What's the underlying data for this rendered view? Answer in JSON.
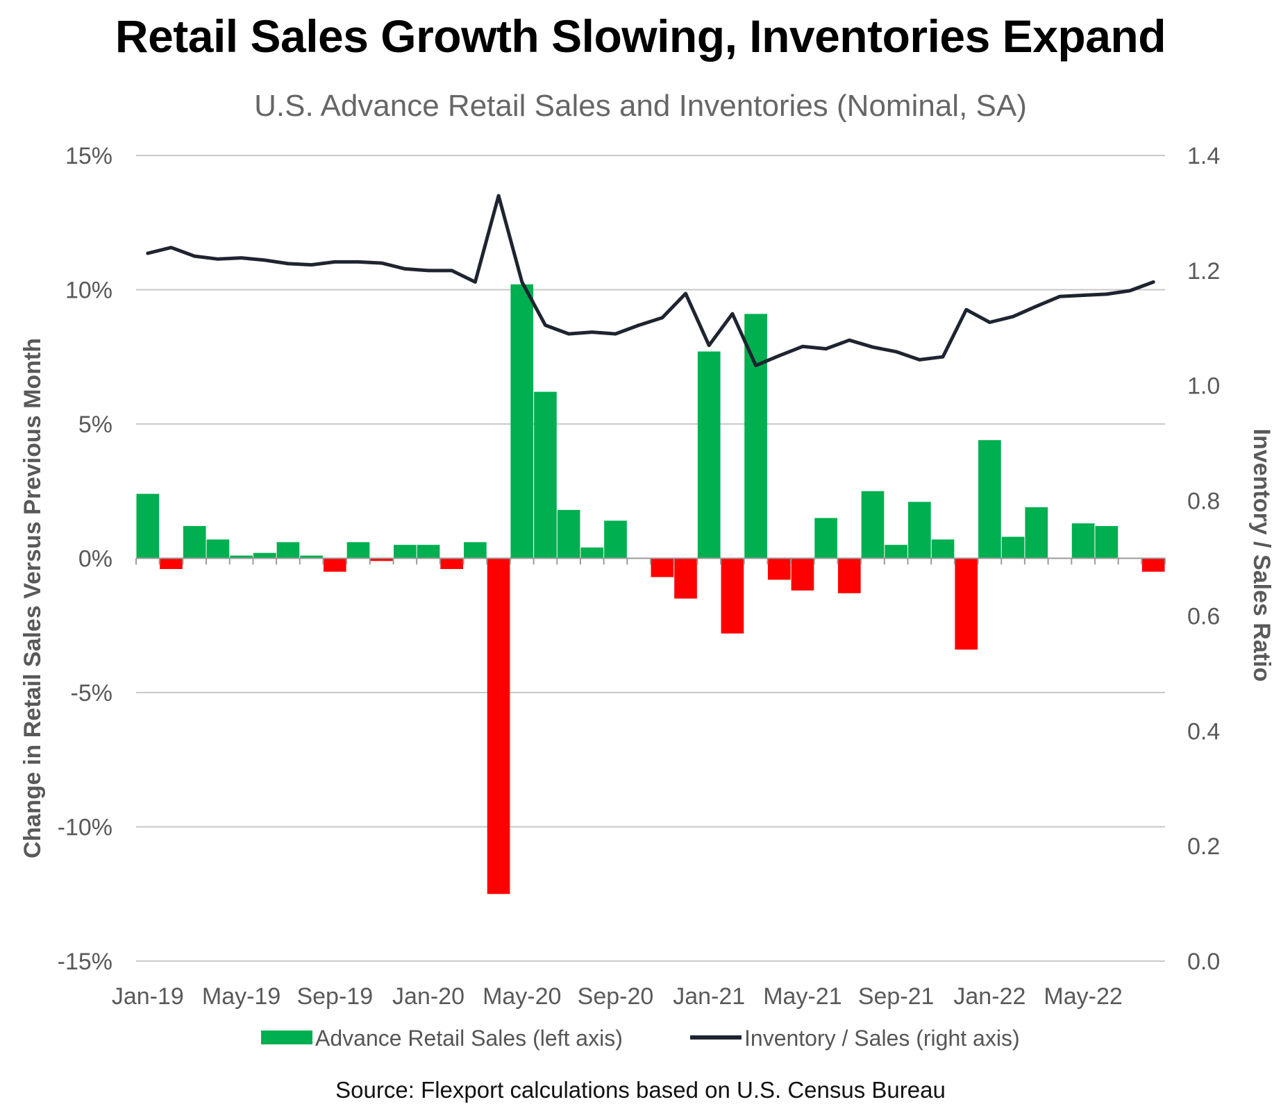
{
  "chart_data": {
    "type": "bar+line",
    "title": "Retail Sales Growth Slowing, Inventories Expand",
    "subtitle": "U.S. Advance Retail Sales and Inventories (Nominal, SA)",
    "source": "Source: Flexport calculations based on U.S. Census Bureau",
    "ylabel_left": "Change in Retail Sales Versus Previous Month",
    "ylabel_right": "Inventory / Sales Ratio",
    "ylim_left": [
      -15,
      15
    ],
    "ylim_right": [
      0,
      1.4
    ],
    "left_ticks": [
      15,
      10,
      5,
      0,
      -5,
      -10,
      -15
    ],
    "left_tick_labels": [
      "15%",
      "10%",
      "5%",
      "0%",
      "-5%",
      "-10%",
      "-15%"
    ],
    "right_ticks": [
      1.4,
      1.2,
      1.0,
      0.8,
      0.6,
      0.4,
      0.2,
      0.0
    ],
    "right_tick_labels": [
      "1.4",
      "1.2",
      "1.0",
      "0.8",
      "0.6",
      "0.4",
      "0.2",
      "0.0"
    ],
    "x_tick_indices": [
      0,
      4,
      8,
      12,
      16,
      20,
      24,
      28,
      32,
      36,
      40
    ],
    "x_tick_labels": [
      "Jan-19",
      "May-19",
      "Sep-19",
      "Jan-20",
      "May-20",
      "Sep-20",
      "Jan-21",
      "May-21",
      "Sep-21",
      "Jan-22",
      "May-22"
    ],
    "months": [
      "Jan-19",
      "Feb-19",
      "Mar-19",
      "Apr-19",
      "May-19",
      "Jun-19",
      "Jul-19",
      "Aug-19",
      "Sep-19",
      "Oct-19",
      "Nov-19",
      "Dec-19",
      "Jan-20",
      "Feb-20",
      "Mar-20",
      "Apr-20",
      "May-20",
      "Jun-20",
      "Jul-20",
      "Aug-20",
      "Sep-20",
      "Oct-20",
      "Nov-20",
      "Dec-20",
      "Jan-21",
      "Feb-21",
      "Mar-21",
      "Apr-21",
      "May-21",
      "Jun-21",
      "Jul-21",
      "Aug-21",
      "Sep-21",
      "Oct-21",
      "Nov-21",
      "Dec-21",
      "Jan-22",
      "Feb-22",
      "Mar-22",
      "Apr-22",
      "May-22",
      "Jun-22",
      "Jul-22",
      "Aug-22"
    ],
    "series": [
      {
        "name": "Advance Retail Sales (left axis)",
        "type": "bar",
        "axis": "left",
        "positive_color": "#00AF50",
        "negative_color": "#FF0000",
        "values": [
          2.4,
          -0.4,
          1.2,
          0.7,
          0.1,
          0.2,
          0.6,
          0.1,
          -0.5,
          0.6,
          -0.1,
          0.5,
          0.5,
          -0.4,
          0.6,
          -12.5,
          10.2,
          6.2,
          1.8,
          0.4,
          1.4,
          0.0,
          -0.7,
          -1.5,
          7.7,
          -2.8,
          9.1,
          -0.8,
          -1.2,
          1.5,
          -1.3,
          2.5,
          0.5,
          2.1,
          0.7,
          -3.4,
          4.4,
          0.8,
          1.9,
          0.0,
          1.3,
          1.2,
          0.0,
          -0.5
        ]
      },
      {
        "name": "Inventory / Sales (right axis)",
        "type": "line",
        "axis": "right",
        "color": "#1E2430",
        "values": [
          1.23,
          1.24,
          1.225,
          1.22,
          1.222,
          1.218,
          1.212,
          1.21,
          1.215,
          1.215,
          1.213,
          1.203,
          1.2,
          1.2,
          1.18,
          1.33,
          1.18,
          1.105,
          1.09,
          1.093,
          1.09,
          1.105,
          1.118,
          1.16,
          1.07,
          1.125,
          1.035,
          1.052,
          1.068,
          1.064,
          1.079,
          1.067,
          1.059,
          1.045,
          1.05,
          1.132,
          1.11,
          1.12,
          1.138,
          1.155,
          1.157,
          1.159,
          1.165,
          1.18
        ]
      }
    ],
    "grid": true,
    "legend_position": "bottom"
  }
}
